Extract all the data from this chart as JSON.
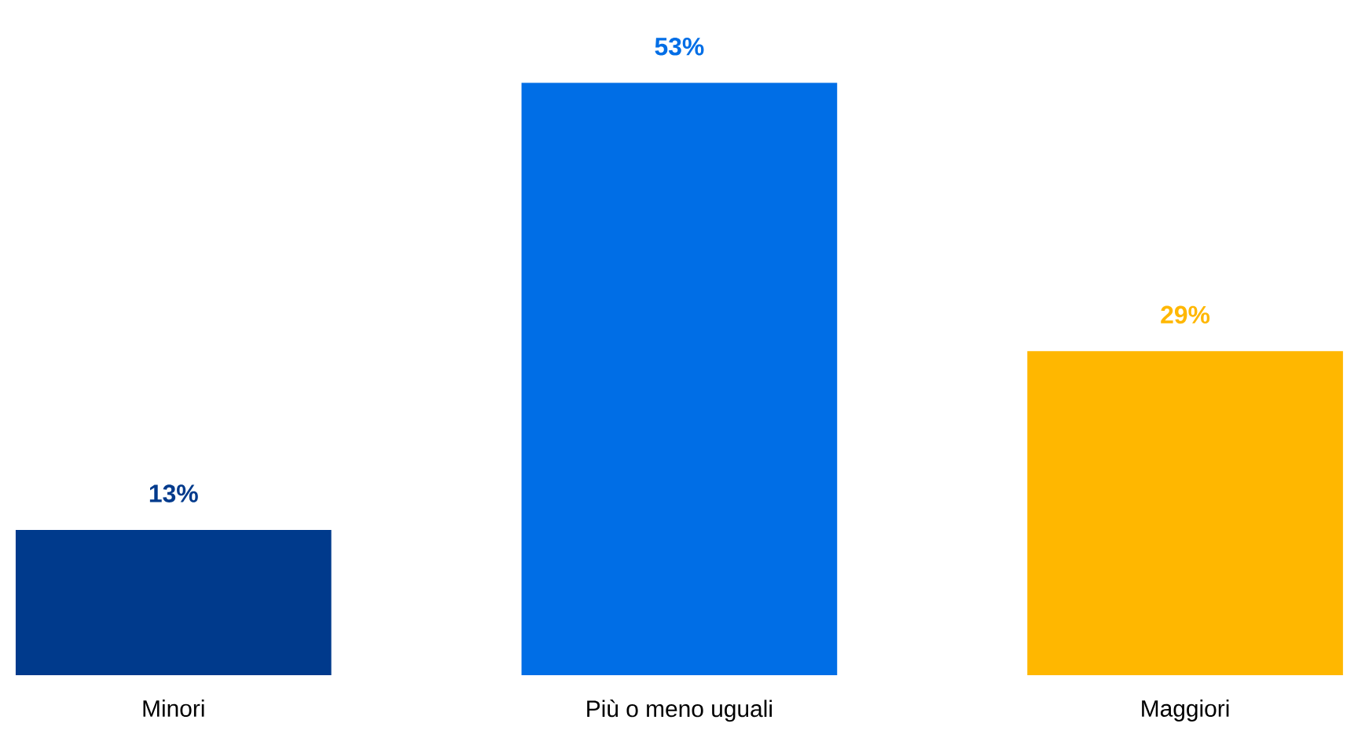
{
  "chart_data": {
    "type": "bar",
    "categories": [
      "Minori",
      "Più o meno uguali",
      "Maggiori"
    ],
    "values": [
      13,
      53,
      29
    ],
    "colors": [
      "#003a8c",
      "#006ee6",
      "#ffb700"
    ],
    "value_labels": [
      "13%",
      "53%",
      "29%"
    ]
  }
}
